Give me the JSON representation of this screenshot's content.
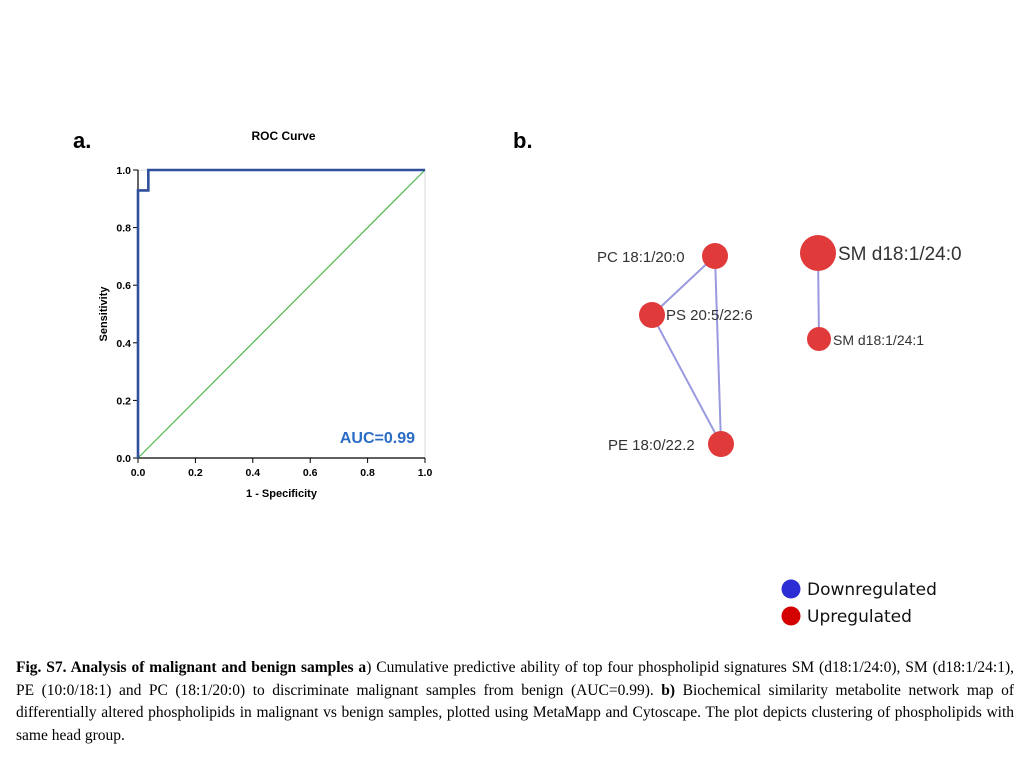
{
  "panels": {
    "a": "a.",
    "b": "b."
  },
  "chart_data": [
    {
      "type": "line",
      "title": "ROC Curve",
      "xlabel": "1 - Specificity",
      "ylabel": "Sensitivity",
      "xlim": [
        0.0,
        1.0
      ],
      "ylim": [
        0.0,
        1.0
      ],
      "xticks": [
        "0.0",
        "0.2",
        "0.4",
        "0.6",
        "0.8",
        "1.0"
      ],
      "yticks": [
        "0.0",
        "0.2",
        "0.4",
        "0.6",
        "0.8",
        "1.0"
      ],
      "series": [
        {
          "name": "",
          "color": "#2f4f9c",
          "points": [
            [
              0.0,
              0.0
            ],
            [
              0.0,
              0.929
            ],
            [
              0.036,
              0.929
            ],
            [
              0.036,
              1.0
            ],
            [
              1.0,
              1.0
            ]
          ]
        },
        {
          "name": "",
          "color": "#4cb84c",
          "points": [
            [
              0.0,
              0.0
            ],
            [
              1.0,
              1.0
            ]
          ]
        }
      ],
      "annotation": "AUC=0.99"
    },
    {
      "type": "network",
      "nodes": [
        {
          "id": "pc",
          "label": "PC 18:1/20:0",
          "color": "#e03a3a"
        },
        {
          "id": "ps",
          "label": "PS 20:5/22:6",
          "color": "#e03a3a"
        },
        {
          "id": "pe",
          "label": "PE 18:0/22.2",
          "color": "#e03a3a"
        },
        {
          "id": "sm1",
          "label": "SM d18:1/24:0",
          "color": "#e03a3a"
        },
        {
          "id": "sm2",
          "label": "SM d18:1/24:1",
          "color": "#e03a3a"
        }
      ],
      "edges": [
        [
          "pc",
          "ps"
        ],
        [
          "pc",
          "pe"
        ],
        [
          "ps",
          "pe"
        ],
        [
          "sm1",
          "sm2"
        ]
      ],
      "legend": [
        {
          "label": "Downregulated",
          "color": "#2d2dd6"
        },
        {
          "label": "Upregulated",
          "color": "#d40000"
        }
      ]
    }
  ],
  "caption": {
    "lead": "Fig. S7. Analysis of malignant and benign samples a",
    "part_a": ") Cumulative predictive ability of top four phospholipid signatures SM (d18:1/24:0), SM (d18:1/24:1), PE (10:0/18:1) and PC (18:1/20:0) to discriminate malignant samples from benign (AUC=0.99). ",
    "b_marker": "b)",
    "part_b": "  Biochemical similarity metabolite network map of differentially altered phospholipids in malignant vs benign samples, plotted using MetaMapp and Cytoscape. The plot depicts clustering of phospholipids with same head group."
  }
}
